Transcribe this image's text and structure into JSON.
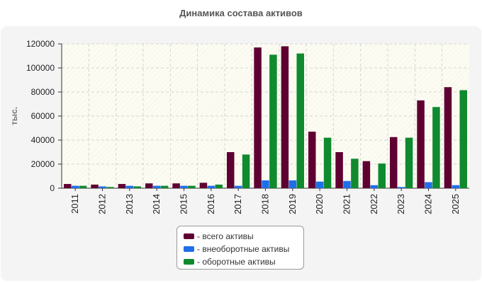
{
  "chart_data": {
    "type": "bar",
    "title": "Динамика состава активов",
    "ylabel": "тыс.",
    "xlabel": "",
    "ylim": [
      0,
      120000
    ],
    "yticks": [
      0,
      20000,
      40000,
      60000,
      80000,
      100000,
      120000
    ],
    "grid": true,
    "legend_position": "bottom-center",
    "categories": [
      "2011",
      "2012",
      "2013",
      "2014",
      "2015",
      "2016",
      "2017",
      "2018",
      "2019",
      "2020",
      "2021",
      "2022",
      "2023",
      "2024",
      "2025"
    ],
    "series": [
      {
        "name": "- всего активы",
        "color": "#5f0032",
        "values": [
          3500,
          3000,
          3500,
          4000,
          4000,
          4500,
          30000,
          117000,
          118000,
          47000,
          30000,
          22500,
          42500,
          73000,
          84000
        ]
      },
      {
        "name": "- внеоборотные активы",
        "color": "#1f6fe8",
        "values": [
          2000,
          1500,
          2000,
          2000,
          2000,
          2000,
          2000,
          6500,
          6500,
          5500,
          6000,
          2500,
          1000,
          5000,
          2500
        ]
      },
      {
        "name": "- оборотные активы",
        "color": "#0f8a2e",
        "values": [
          2000,
          1000,
          1500,
          2000,
          2000,
          3000,
          28000,
          111000,
          112000,
          42000,
          24500,
          20500,
          42000,
          67500,
          81500
        ]
      }
    ]
  }
}
